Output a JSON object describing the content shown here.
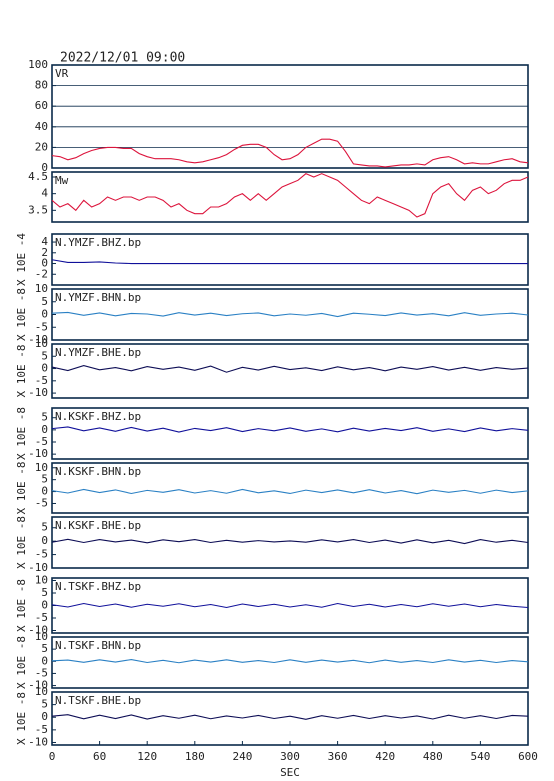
{
  "title": "2022/12/01 09:00",
  "chart_data": [
    {
      "type": "line",
      "title": "VR",
      "ylim": [
        0,
        100
      ],
      "yticks": [
        0,
        20,
        40,
        60,
        80,
        100
      ],
      "grid": true,
      "xlim": [
        0,
        600
      ],
      "series": [
        {
          "color": "#dc143c",
          "x": [
            0,
            10,
            20,
            30,
            40,
            50,
            60,
            70,
            80,
            90,
            100,
            110,
            120,
            130,
            140,
            150,
            160,
            170,
            180,
            190,
            200,
            210,
            220,
            230,
            240,
            250,
            260,
            270,
            280,
            290,
            300,
            310,
            320,
            330,
            340,
            350,
            360,
            370,
            380,
            390,
            400,
            410,
            420,
            430,
            440,
            450,
            460,
            470,
            480,
            490,
            500,
            510,
            520,
            530,
            540,
            550,
            560,
            570,
            580,
            590,
            600
          ],
          "values": [
            12,
            11,
            8,
            10,
            14,
            17,
            19,
            20,
            20,
            19,
            19,
            14,
            11,
            9,
            9,
            9,
            8,
            6,
            5,
            6,
            8,
            10,
            13,
            18,
            22,
            23,
            23,
            20,
            13,
            8,
            9,
            13,
            20,
            24,
            28,
            28,
            26,
            16,
            4,
            3,
            2,
            2,
            1,
            2,
            3,
            3,
            4,
            3,
            8,
            10,
            11,
            8,
            4,
            5,
            4,
            4,
            6,
            8,
            9,
            6,
            5
          ]
        }
      ]
    },
    {
      "type": "line",
      "title": "Mw",
      "ylim": [
        3.15,
        4.65
      ],
      "yticks": [
        3.5,
        4,
        4.5
      ],
      "grid": false,
      "xlim": [
        0,
        600
      ],
      "series": [
        {
          "color": "#dc143c",
          "x": [
            0,
            10,
            20,
            30,
            40,
            50,
            60,
            70,
            80,
            90,
            100,
            110,
            120,
            130,
            140,
            150,
            160,
            170,
            180,
            190,
            200,
            210,
            220,
            230,
            240,
            250,
            260,
            270,
            280,
            290,
            300,
            310,
            320,
            330,
            340,
            350,
            360,
            370,
            380,
            390,
            400,
            410,
            420,
            430,
            440,
            450,
            460,
            470,
            480,
            490,
            500,
            510,
            520,
            530,
            540,
            550,
            560,
            570,
            580,
            590,
            600
          ],
          "values": [
            3.8,
            3.6,
            3.7,
            3.5,
            3.8,
            3.6,
            3.7,
            3.9,
            3.8,
            3.9,
            3.9,
            3.8,
            3.9,
            3.9,
            3.8,
            3.6,
            3.7,
            3.5,
            3.4,
            3.4,
            3.6,
            3.6,
            3.7,
            3.9,
            4.0,
            3.8,
            4.0,
            3.8,
            4.0,
            4.2,
            4.3,
            4.4,
            4.6,
            4.5,
            4.6,
            4.5,
            4.4,
            4.2,
            4.0,
            3.8,
            3.7,
            3.9,
            3.8,
            3.7,
            3.6,
            3.5,
            3.3,
            3.4,
            4.0,
            4.2,
            4.3,
            4.0,
            3.8,
            4.1,
            4.2,
            4.0,
            4.1,
            4.3,
            4.4,
            4.4,
            4.5
          ]
        }
      ]
    },
    {
      "type": "line",
      "title": "N.YMZF.BHZ.bp",
      "ylabel": "X 10E -4",
      "ylim": [
        -4,
        5.5
      ],
      "yticks": [
        -2,
        0,
        2,
        4
      ],
      "xlim": [
        0,
        600
      ],
      "series": [
        {
          "color": "#10109a",
          "x": [
            0,
            20,
            40,
            60,
            80,
            100,
            120,
            140,
            160,
            180,
            200,
            220,
            240,
            260,
            280,
            300,
            320,
            340,
            360,
            380,
            400,
            420,
            440,
            460,
            480,
            500,
            520,
            540,
            560,
            580,
            600
          ],
          "values": [
            0.7,
            0.2,
            0.2,
            0.3,
            0.1,
            0,
            0,
            0,
            0,
            0,
            0,
            0,
            0,
            0,
            0,
            0,
            0,
            0,
            0,
            0,
            0,
            0,
            0,
            0,
            0,
            0,
            0,
            0,
            0,
            0,
            0
          ]
        }
      ]
    },
    {
      "type": "line",
      "title": "N.YMZF.BHN.bp",
      "ylabel": "X 10E -8",
      "ylim": [
        -10,
        10
      ],
      "yticks": [
        -10,
        -5,
        0,
        5,
        10
      ],
      "xlim": [
        0,
        600
      ],
      "series": [
        {
          "color": "#2a80c4",
          "x": [
            0,
            20,
            40,
            60,
            80,
            100,
            120,
            140,
            160,
            180,
            200,
            220,
            240,
            260,
            280,
            300,
            320,
            340,
            360,
            380,
            400,
            420,
            440,
            460,
            480,
            500,
            520,
            540,
            560,
            580,
            600
          ],
          "values": [
            0.5,
            0.8,
            -0.3,
            0.6,
            -0.5,
            0.4,
            0.2,
            -0.6,
            0.7,
            -0.2,
            0.5,
            -0.4,
            0.3,
            0.6,
            -0.5,
            0.2,
            -0.3,
            0.4,
            -0.8,
            0.5,
            0.1,
            -0.4,
            0.6,
            -0.2,
            0.3,
            -0.5,
            0.7,
            -0.3,
            0.2,
            0.5,
            -0.2
          ]
        }
      ]
    },
    {
      "type": "line",
      "title": "N.YMZF.BHE.bp",
      "ylabel": "X 10E -8",
      "ylim": [
        -12,
        10
      ],
      "yticks": [
        -10,
        -5,
        0,
        5,
        10
      ],
      "xlim": [
        0,
        600
      ],
      "series": [
        {
          "color": "#0d0d55",
          "x": [
            0,
            20,
            40,
            60,
            80,
            100,
            120,
            140,
            160,
            180,
            200,
            220,
            240,
            260,
            280,
            300,
            320,
            340,
            360,
            380,
            400,
            420,
            440,
            460,
            480,
            500,
            520,
            540,
            560,
            580,
            600
          ],
          "values": [
            0.6,
            -0.8,
            1.2,
            -0.5,
            0.4,
            -0.9,
            0.8,
            -0.3,
            0.6,
            -0.7,
            1.0,
            -1.5,
            0.5,
            -0.6,
            0.9,
            -0.4,
            0.3,
            -0.8,
            0.7,
            -0.5,
            0.4,
            -0.9,
            0.6,
            -0.3,
            0.8,
            -0.6,
            0.5,
            -0.7,
            0.4,
            -0.3,
            0.2
          ]
        }
      ]
    },
    {
      "type": "line",
      "title": "N.KSKF.BHZ.bp",
      "ylabel": "X 10E -8",
      "ylim": [
        -12,
        9
      ],
      "yticks": [
        -10,
        -5,
        0,
        5
      ],
      "xlim": [
        0,
        600
      ],
      "series": [
        {
          "color": "#10109a",
          "x": [
            0,
            20,
            40,
            60,
            80,
            100,
            120,
            140,
            160,
            180,
            200,
            220,
            240,
            260,
            280,
            300,
            320,
            340,
            360,
            380,
            400,
            420,
            440,
            460,
            480,
            500,
            520,
            540,
            560,
            580,
            600
          ],
          "values": [
            0.5,
            1.2,
            -0.4,
            0.8,
            -0.6,
            1.0,
            -0.5,
            0.7,
            -0.9,
            0.6,
            -0.3,
            0.9,
            -0.7,
            0.5,
            -0.4,
            0.8,
            -0.6,
            0.4,
            -0.8,
            0.7,
            -0.5,
            0.6,
            -0.3,
            0.9,
            -0.6,
            0.4,
            -0.7,
            0.8,
            -0.4,
            0.5,
            -0.2
          ]
        }
      ]
    },
    {
      "type": "line",
      "title": "N.KSKF.BHN.bp",
      "ylabel": "X 10E -8",
      "ylim": [
        -9,
        12
      ],
      "yticks": [
        -5,
        0,
        5,
        10
      ],
      "xlim": [
        0,
        600
      ],
      "series": [
        {
          "color": "#2a80c4",
          "x": [
            0,
            20,
            40,
            60,
            80,
            100,
            120,
            140,
            160,
            180,
            200,
            220,
            240,
            260,
            280,
            300,
            320,
            340,
            360,
            380,
            400,
            420,
            440,
            460,
            480,
            500,
            520,
            540,
            560,
            580,
            600
          ],
          "values": [
            0.4,
            -0.6,
            0.9,
            -0.4,
            0.7,
            -0.8,
            0.5,
            -0.3,
            0.8,
            -0.6,
            0.4,
            -0.7,
            0.9,
            -0.5,
            0.3,
            -0.8,
            0.6,
            -0.4,
            0.7,
            -0.5,
            0.8,
            -0.6,
            0.4,
            -0.9,
            0.6,
            -0.3,
            0.5,
            -0.7,
            0.6,
            -0.4,
            0.3
          ]
        }
      ]
    },
    {
      "type": "line",
      "title": "N.KSKF.BHE.bp",
      "ylabel": "X 10E -8",
      "ylim": [
        -10,
        9
      ],
      "yticks": [
        -10,
        -5,
        0,
        5
      ],
      "xlim": [
        0,
        600
      ],
      "series": [
        {
          "color": "#0d0d55",
          "x": [
            0,
            20,
            40,
            60,
            80,
            100,
            120,
            140,
            160,
            180,
            200,
            220,
            240,
            260,
            280,
            300,
            320,
            340,
            360,
            380,
            400,
            420,
            440,
            460,
            480,
            500,
            520,
            540,
            560,
            580,
            600
          ],
          "values": [
            -0.4,
            0.7,
            -0.5,
            0.6,
            -0.3,
            0.4,
            -0.6,
            0.5,
            -0.2,
            0.6,
            -0.5,
            0.3,
            -0.4,
            0.2,
            -0.3,
            0.1,
            -0.4,
            0.5,
            -0.3,
            0.6,
            -0.5,
            0.4,
            -0.7,
            0.5,
            -0.6,
            0.3,
            -0.9,
            0.6,
            -0.4,
            0.3,
            -0.5
          ]
        }
      ]
    },
    {
      "type": "line",
      "title": "N.TSKF.BHZ.bp",
      "ylabel": "X 10E -8",
      "ylim": [
        -11,
        11
      ],
      "yticks": [
        -10,
        -5,
        0,
        5,
        10
      ],
      "xlim": [
        0,
        600
      ],
      "series": [
        {
          "color": "#10109a",
          "x": [
            0,
            20,
            40,
            60,
            80,
            100,
            120,
            140,
            160,
            180,
            200,
            220,
            240,
            260,
            280,
            300,
            320,
            340,
            360,
            380,
            400,
            420,
            440,
            460,
            480,
            500,
            520,
            540,
            560,
            580,
            600
          ],
          "values": [
            0.3,
            -0.6,
            0.8,
            -0.4,
            0.6,
            -0.7,
            0.5,
            -0.3,
            0.7,
            -0.5,
            0.4,
            -0.8,
            0.6,
            -0.4,
            0.5,
            -0.6,
            0.3,
            -0.7,
            0.8,
            -0.4,
            0.5,
            -0.6,
            0.4,
            -0.5,
            0.7,
            -0.3,
            0.6,
            -0.5,
            0.4,
            -0.3,
            -0.8
          ]
        }
      ]
    },
    {
      "type": "line",
      "title": "N.TSKF.BHN.bp",
      "ylabel": "X 10E -8",
      "ylim": [
        -11,
        10
      ],
      "yticks": [
        -10,
        -5,
        0,
        5,
        10
      ],
      "xlim": [
        0,
        600
      ],
      "series": [
        {
          "color": "#2a80c4",
          "x": [
            0,
            20,
            40,
            60,
            80,
            100,
            120,
            140,
            160,
            180,
            200,
            220,
            240,
            260,
            280,
            300,
            320,
            340,
            360,
            380,
            400,
            420,
            440,
            460,
            480,
            500,
            520,
            540,
            560,
            580,
            600
          ],
          "values": [
            0.2,
            0.5,
            -0.4,
            0.6,
            -0.3,
            0.7,
            -0.5,
            0.4,
            -0.6,
            0.5,
            -0.3,
            0.6,
            -0.4,
            0.3,
            -0.5,
            0.6,
            -0.4,
            0.5,
            -0.3,
            0.4,
            -0.6,
            0.5,
            -0.4,
            0.3,
            -0.5,
            0.6,
            -0.3,
            0.4,
            -0.5,
            0.3,
            -0.2
          ]
        }
      ]
    },
    {
      "type": "line",
      "title": "N.TSKF.BHE.bp",
      "ylabel": "X 10E -8",
      "ylim": [
        -11,
        10
      ],
      "yticks": [
        -10,
        -5,
        0,
        5,
        10
      ],
      "xlim": [
        0,
        600
      ],
      "xticks": [
        0,
        60,
        120,
        180,
        240,
        300,
        360,
        420,
        480,
        540,
        600
      ],
      "xlabel": "SEC",
      "series": [
        {
          "color": "#0d0d55",
          "x": [
            0,
            20,
            40,
            60,
            80,
            100,
            120,
            140,
            160,
            180,
            200,
            220,
            240,
            260,
            280,
            300,
            320,
            340,
            360,
            380,
            400,
            420,
            440,
            460,
            480,
            500,
            520,
            540,
            560,
            580,
            600
          ],
          "values": [
            0.4,
            1.0,
            -0.6,
            0.8,
            -0.5,
            0.9,
            -0.7,
            0.6,
            -0.4,
            0.8,
            -0.6,
            0.5,
            -0.3,
            0.7,
            -0.5,
            0.4,
            -0.8,
            0.6,
            -0.4,
            0.7,
            -0.5,
            0.6,
            -0.3,
            0.5,
            -0.7,
            0.8,
            -0.4,
            0.6,
            -0.5,
            0.7,
            0.4
          ]
        }
      ]
    }
  ]
}
